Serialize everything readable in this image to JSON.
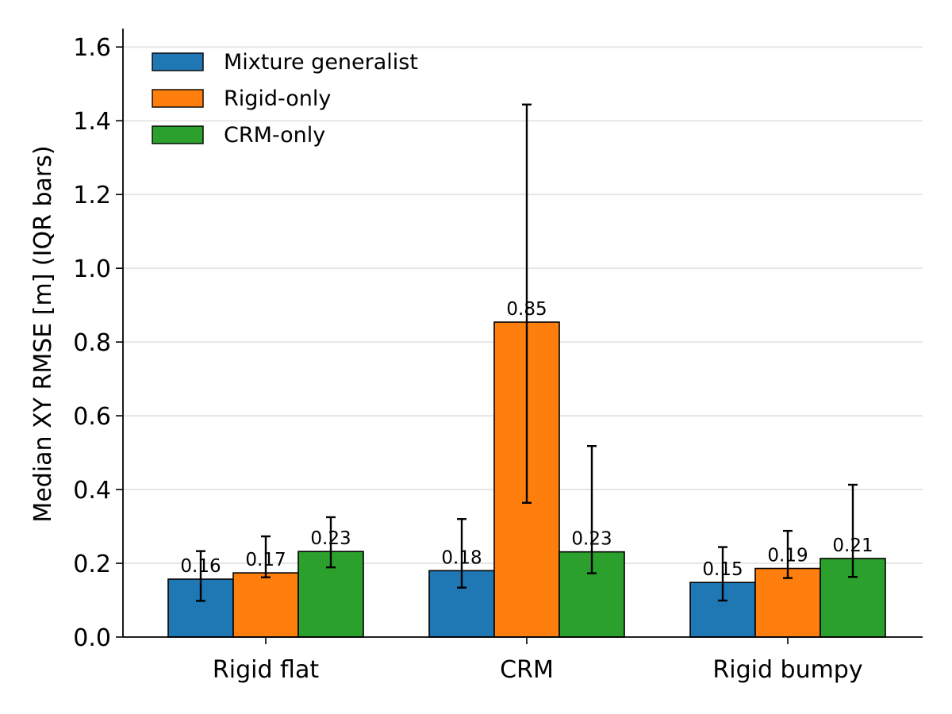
{
  "chart_data": {
    "type": "bar",
    "categories": [
      "Rigid flat",
      "CRM",
      "Rigid bumpy"
    ],
    "series": [
      {
        "name": "Mixture generalist",
        "color": "#1f77b4",
        "values": [
          0.157,
          0.18,
          0.148
        ],
        "err_low": [
          0.098,
          0.134,
          0.099
        ],
        "err_high": [
          0.233,
          0.32,
          0.244
        ],
        "labels": [
          "0.16",
          "0.18",
          "0.15"
        ]
      },
      {
        "name": "Rigid-only",
        "color": "#ff7f0e",
        "values": [
          0.174,
          0.854,
          0.186
        ],
        "err_low": [
          0.162,
          0.364,
          0.16
        ],
        "err_high": [
          0.273,
          1.444,
          0.288
        ],
        "labels": [
          "0.17",
          "0.85",
          "0.19"
        ]
      },
      {
        "name": "CRM-only",
        "color": "#2ca02c",
        "values": [
          0.232,
          0.231,
          0.213
        ],
        "err_low": [
          0.189,
          0.173,
          0.163
        ],
        "err_high": [
          0.325,
          0.518,
          0.413
        ],
        "labels": [
          "0.23",
          "0.23",
          "0.21"
        ]
      }
    ],
    "ylabel": "Median XY RMSE [m] (IQR bars)",
    "xlabel": "",
    "ylim": [
      0,
      1.65
    ],
    "yticks": [
      "0.0",
      "0.2",
      "0.4",
      "0.6",
      "0.8",
      "1.0",
      "1.2",
      "1.4",
      "1.6"
    ],
    "grid": "horizontal",
    "legend_position": "top-left"
  }
}
